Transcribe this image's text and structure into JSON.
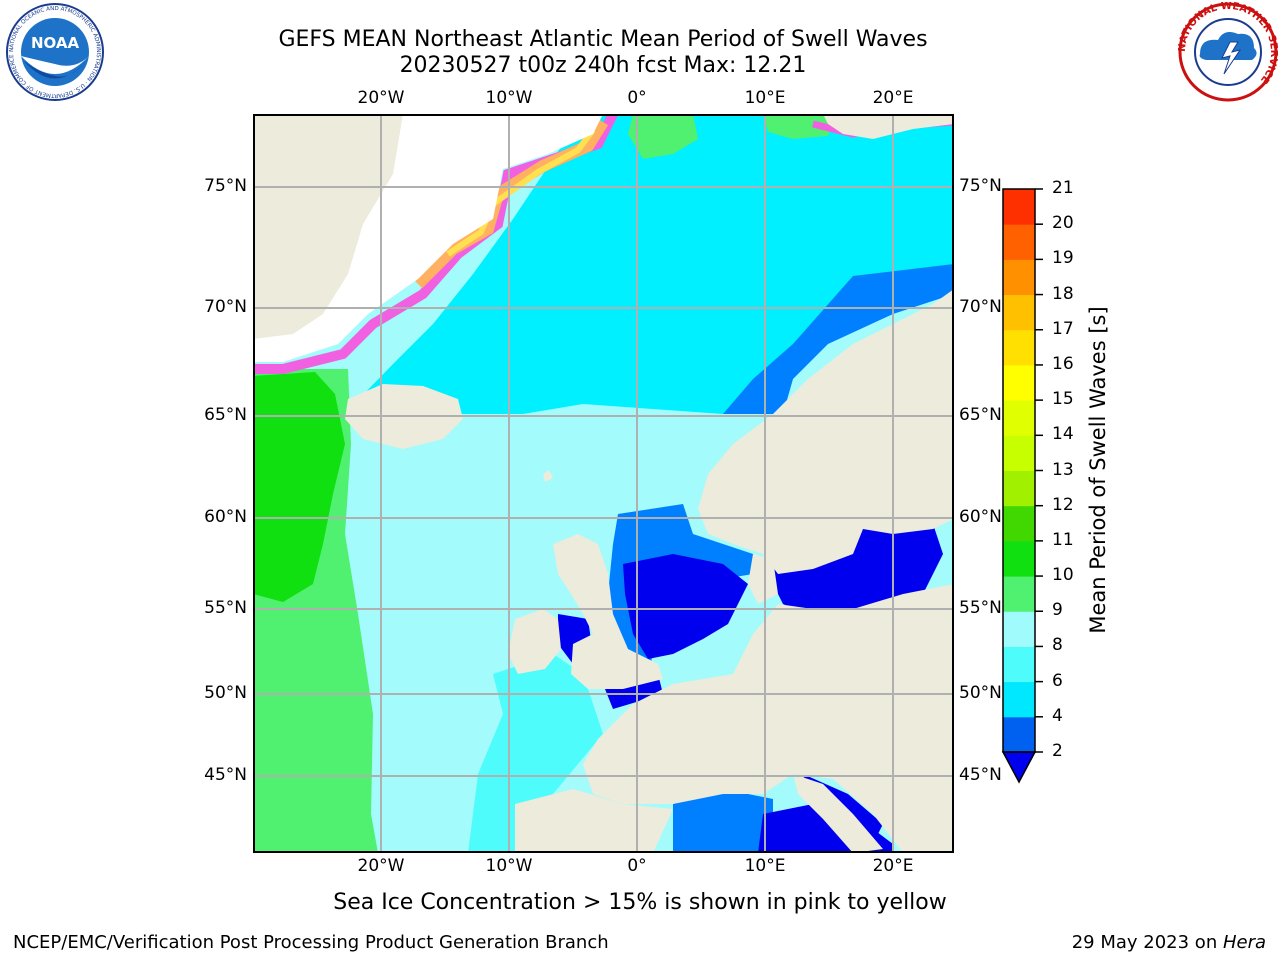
{
  "header": {
    "title_line1": "GEFS MEAN Northeast Atlantic Mean Period of Swell Waves",
    "title_line2": "20230527 t00z 240h fcst   Max: 12.21"
  },
  "logos": {
    "left": {
      "icon": "noaa-logo",
      "text": "NOAA",
      "ring_text": "NATIONAL OCEANIC AND ATMOSPHERIC ADMINISTRATION · U.S. DEPARTMENT OF COMMERCE"
    },
    "right": {
      "icon": "nws-logo",
      "ring_text": "NATIONAL WEATHER SERVICE"
    }
  },
  "map": {
    "lon_labels": [
      "20°W",
      "10°W",
      "0°",
      "10°E",
      "20°E"
    ],
    "lat_labels": [
      "75°N",
      "70°N",
      "65°N",
      "60°N",
      "55°N",
      "50°N",
      "45°N"
    ],
    "colors": {
      "ocean_main": "#a4fbfb",
      "ocean_light_cyan": "#4ffcfc",
      "ocean_cyan": "#00f0ff",
      "green_light": "#50f070",
      "green": "#10e010",
      "blue_mid": "#0080ff",
      "blue_deep": "#0000ee",
      "land": "#ecebdc",
      "ice_pink": "#f060e0",
      "ice_orange": "#ffb060",
      "ice_yellow": "#ffe050",
      "grid": "#b0b0b0"
    }
  },
  "colorbar": {
    "title": "Mean Period of Swell Waves [s]",
    "ticks": [
      "2",
      "4",
      "6",
      "8",
      "9",
      "10",
      "11",
      "12",
      "13",
      "14",
      "15",
      "16",
      "17",
      "18",
      "19",
      "20",
      "21"
    ],
    "colors": [
      "#0060f0",
      "#00e8ff",
      "#4ffcfc",
      "#a0fcfc",
      "#50f070",
      "#10e010",
      "#40d800",
      "#a0f000",
      "#c8ff00",
      "#e0ff00",
      "#ffff00",
      "#ffe000",
      "#ffc000",
      "#ff9000",
      "#ff6000",
      "#ff3000"
    ],
    "extend_color": "#0000ee"
  },
  "note": "Sea Ice Concentration > 15% is shown in pink to yellow",
  "footer": {
    "left": "NCEP/EMC/Verification Post Processing Product Generation Branch",
    "right_date": "29 May 2023 on ",
    "right_host": "Hera"
  }
}
